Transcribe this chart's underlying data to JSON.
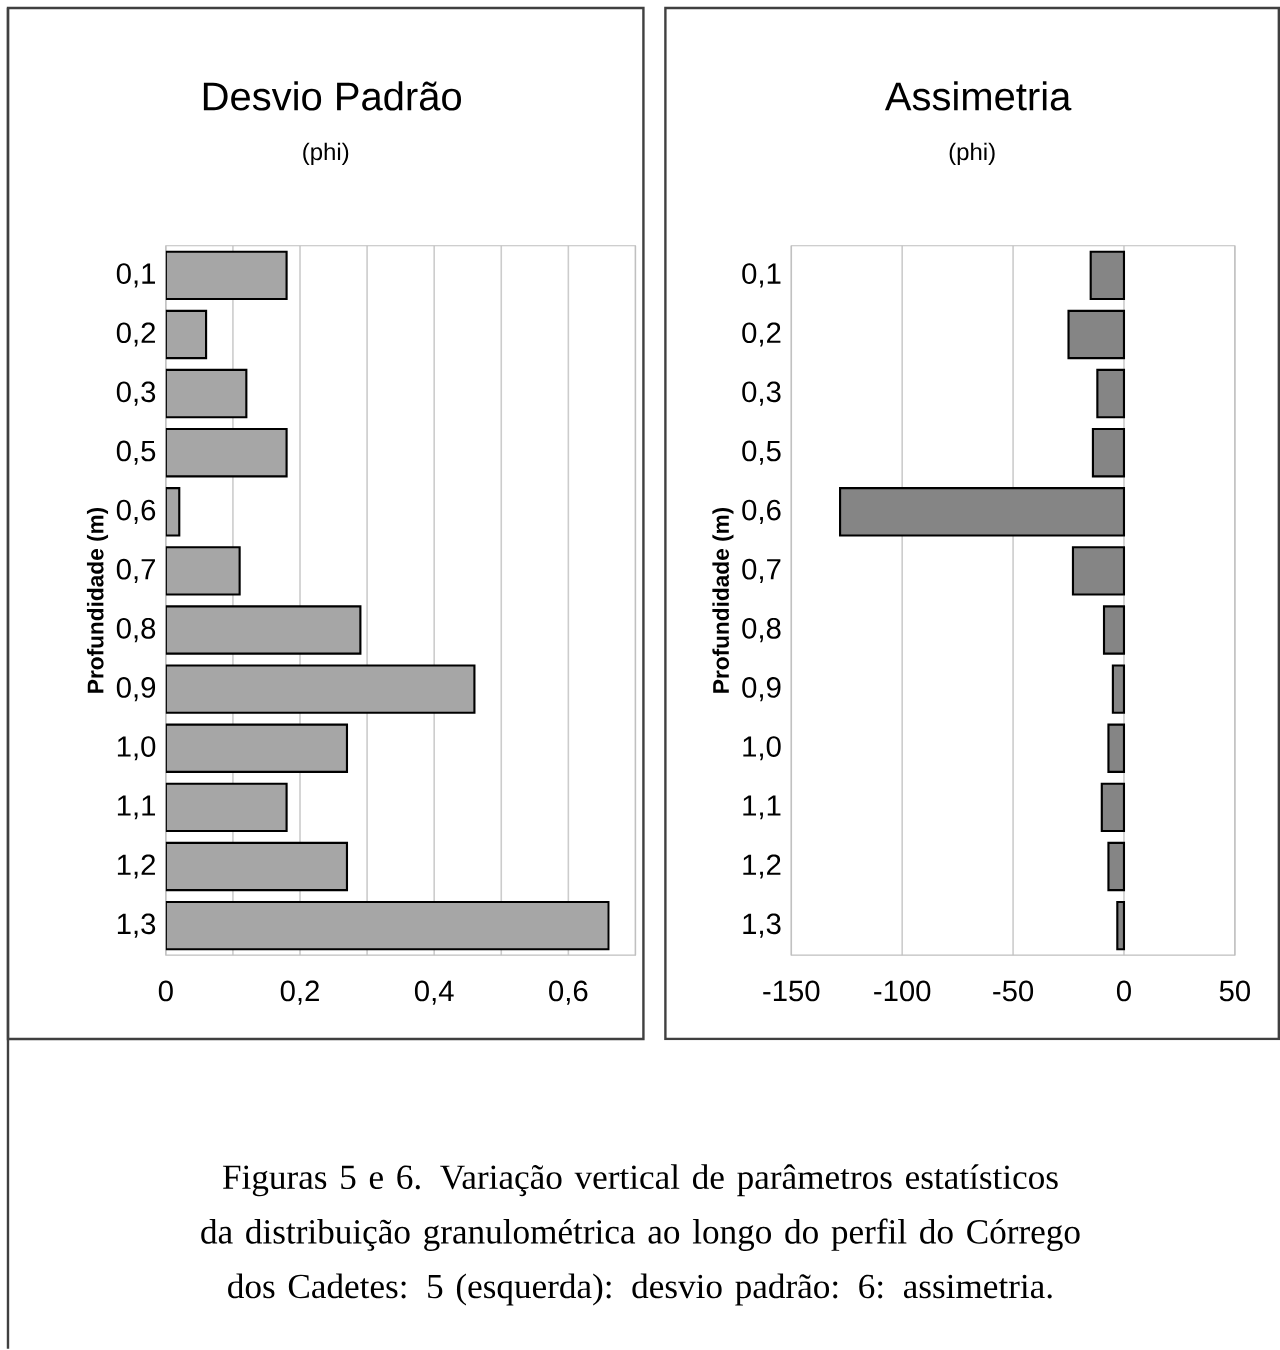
{
  "chart_data": [
    {
      "type": "bar",
      "orientation": "horizontal",
      "title": "Desvio Padrão",
      "subtitle": "(phi)",
      "ylabel": "Profundidade (m)",
      "categories": [
        "0,1",
        "0,2",
        "0,3",
        "0,5",
        "0,6",
        "0,7",
        "0,8",
        "0,9",
        "1,0",
        "1,1",
        "1,2",
        "1,3"
      ],
      "values": [
        0.18,
        0.06,
        0.12,
        0.18,
        0.02,
        0.11,
        0.29,
        0.46,
        0.27,
        0.18,
        0.27,
        0.66
      ],
      "color": "#a6a6a6",
      "xlim": [
        0,
        0.7
      ],
      "xticks": [
        0,
        {
          "value": 0.1,
          "label": null
        },
        {
          "value": 0.2,
          "label": "0,2"
        },
        {
          "value": 0.3,
          "label": null
        },
        {
          "value": 0.4,
          "label": "0,4"
        },
        {
          "value": 0.5,
          "label": null
        },
        {
          "value": 0.6,
          "label": "0,6"
        },
        {
          "value": 0.7,
          "label": null
        }
      ],
      "grid": "x",
      "annotations": [
        "Figuras 5 e 6. Variação vertical de parâmetros estatísticos da distribuição granulométrica ao longo do perfil do Córrego dos Cadetes: 5 (esquerda): desvio padrão: 6: assimetria."
      ]
    },
    {
      "type": "bar",
      "orientation": "horizontal",
      "title": "Assimetria",
      "subtitle": "(phi)",
      "ylabel": "Profundidade (m)",
      "categories": [
        "0,1",
        "0,2",
        "0,3",
        "0,5",
        "0,6",
        "0,7",
        "0,8",
        "0,9",
        "1,0",
        "1,1",
        "1,2",
        "1,3"
      ],
      "values": [
        -15,
        -25,
        -12,
        -14,
        -128,
        -23,
        -9,
        -5,
        -7,
        -10,
        -7,
        -3
      ],
      "color": "#858585",
      "xlim": [
        -150,
        50
      ],
      "xticks": [
        -150,
        -100,
        -50,
        0,
        50
      ],
      "grid": "x"
    }
  ]
}
